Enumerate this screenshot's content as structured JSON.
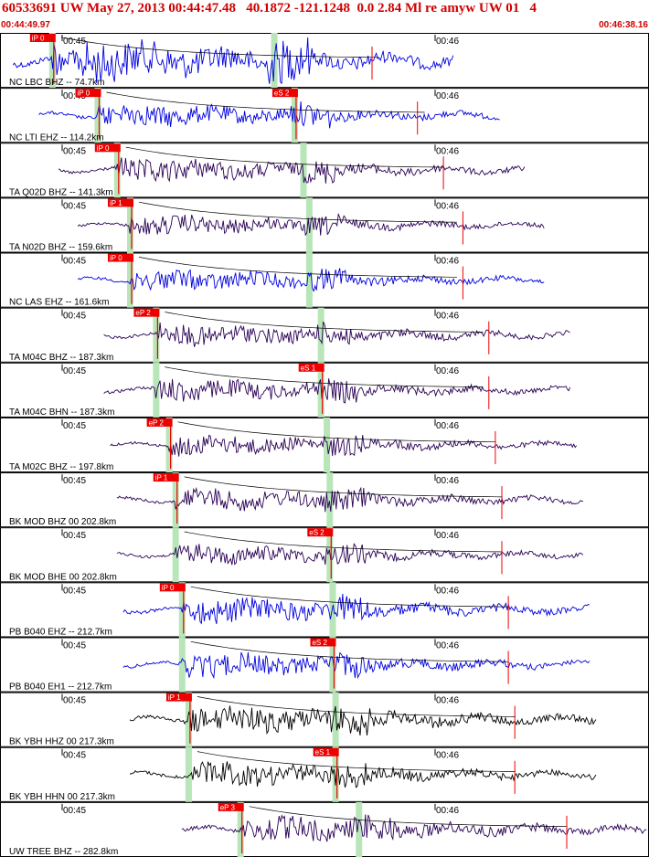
{
  "header": {
    "title": "60533691 UW May 27, 2013 00:44:47.48   40.1872 -121.1248  0.0 2.84 Ml re amyw UW 01   4",
    "start_time": "00:44:49.97",
    "end_time": "00:46:38.16"
  },
  "tick_labels": {
    "t1": "00:45",
    "t2": "00:46"
  },
  "colors": {
    "title": "#d00000",
    "trace_blue": "#0000e0",
    "trace_purple": "#2a0055",
    "trace_black": "#000000",
    "pick_box": "#ee0000",
    "pick_text": "#ffffff",
    "ts_band": "#b8e6b8",
    "border": "#000000"
  },
  "traces": [
    {
      "label": "NC LBC BHZ -- 74.7km",
      "color": "blue",
      "pick": "iP 0",
      "pick2": "",
      "start": 0.02,
      "end": 0.7,
      "onset": 0.08,
      "amp": 1.0
    },
    {
      "label": "NC LTI EHZ -- 114.2km",
      "color": "blue",
      "pick": "iP 0",
      "pick2": "eS 2",
      "start": 0.06,
      "end": 0.77,
      "onset": 0.15,
      "amp": 0.55
    },
    {
      "label": "TA Q02D BHZ -- 141.3km",
      "color": "purple",
      "pick": "iP 0",
      "pick2": "",
      "start": 0.09,
      "end": 0.81,
      "onset": 0.18,
      "amp": 0.55
    },
    {
      "label": "TA N02D BHZ -- 159.6km",
      "color": "purple",
      "pick": "iP 1",
      "pick2": "",
      "start": 0.12,
      "end": 0.84,
      "onset": 0.2,
      "amp": 0.45
    },
    {
      "label": "NC LAS EHZ -- 161.6km",
      "color": "blue",
      "pick": "iP 0",
      "pick2": "",
      "start": 0.12,
      "end": 0.84,
      "onset": 0.2,
      "amp": 0.5
    },
    {
      "label": "TA M04C BHZ -- 187.3km",
      "color": "purple",
      "pick": "eP 2",
      "pick2": "",
      "start": 0.16,
      "end": 0.88,
      "onset": 0.24,
      "amp": 0.5
    },
    {
      "label": "TA M04C BHN -- 187.3km",
      "color": "purple",
      "pick": "",
      "pick2": "eS 1",
      "start": 0.16,
      "end": 0.88,
      "onset": 0.24,
      "amp": 0.5
    },
    {
      "label": "TA M02C BHZ -- 197.8km",
      "color": "purple",
      "pick": "eP 2",
      "pick2": "",
      "start": 0.17,
      "end": 0.89,
      "onset": 0.26,
      "amp": 0.45
    },
    {
      "label": "BK MOD BHZ 00 202.8km",
      "color": "purple",
      "pick": "iP 1",
      "pick2": "",
      "start": 0.18,
      "end": 0.9,
      "onset": 0.27,
      "amp": 0.5
    },
    {
      "label": "BK MOD BHE 00 202.8km",
      "color": "purple",
      "pick": "",
      "pick2": "eS 2",
      "start": 0.18,
      "end": 0.9,
      "onset": 0.27,
      "amp": 0.45
    },
    {
      "label": "PB B040 EHZ -- 212.7km",
      "color": "blue",
      "pick": "iP 0",
      "pick2": "",
      "start": 0.19,
      "end": 0.91,
      "onset": 0.28,
      "amp": 0.6
    },
    {
      "label": "PB B040 EH1 -- 212.7km",
      "color": "blue",
      "pick": "",
      "pick2": "eS 2",
      "start": 0.19,
      "end": 0.91,
      "onset": 0.28,
      "amp": 0.55
    },
    {
      "label": "BK YBH HHZ 00 217.3km",
      "color": "black",
      "pick": "iP 1",
      "pick2": "",
      "start": 0.2,
      "end": 0.92,
      "onset": 0.29,
      "amp": 0.65
    },
    {
      "label": "BK YBH HHN 00 217.3km",
      "color": "black",
      "pick": "",
      "pick2": "eS 1",
      "start": 0.2,
      "end": 0.92,
      "onset": 0.29,
      "amp": 0.55
    },
    {
      "label": "UW TREE BHZ -- 282.8km",
      "color": "purple",
      "pick": "eP 3",
      "pick2": "",
      "start": 0.28,
      "end": 1.0,
      "onset": 0.37,
      "amp": 0.6
    }
  ]
}
